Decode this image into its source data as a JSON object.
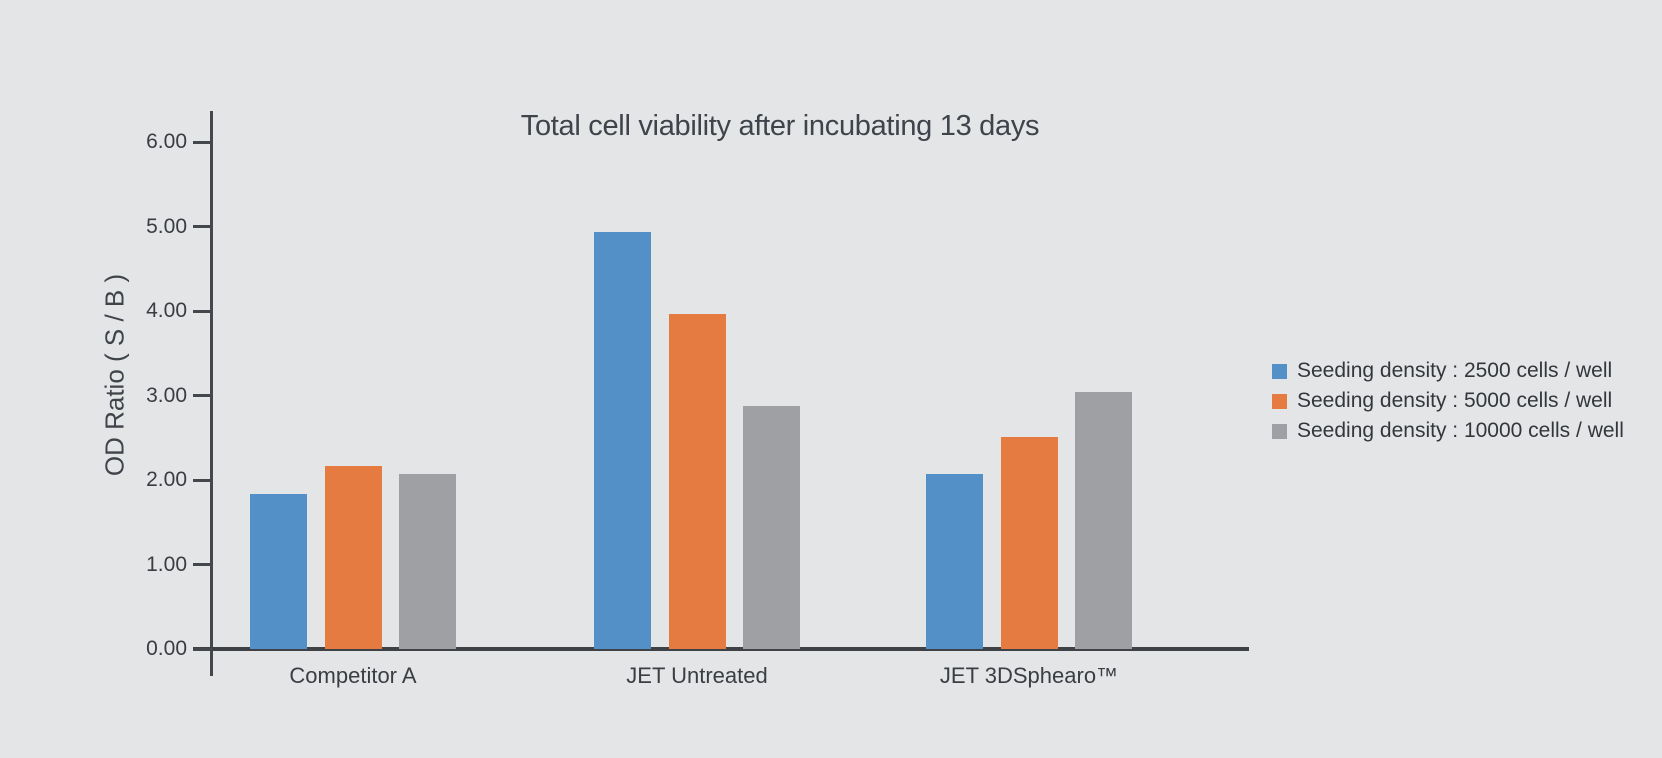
{
  "chart_data": {
    "type": "bar",
    "title": "Total cell viability after incubating 13 days",
    "xlabel": "",
    "ylabel": "OD Ratio ( S / B )",
    "categories": [
      "Competitor A",
      "JET Untreated",
      "JET 3DSphearo™"
    ],
    "series": [
      {
        "name": "Seeding density : 2500 cells / well",
        "color": "#5390C7",
        "values": [
          1.83,
          4.93,
          2.07
        ]
      },
      {
        "name": "Seeding density : 5000 cells / well",
        "color": "#E57B40",
        "values": [
          2.17,
          3.97,
          2.51
        ]
      },
      {
        "name": "Seeding density : 10000 cells / well",
        "color": "#9EA0A3",
        "values": [
          2.07,
          2.88,
          3.04
        ]
      }
    ],
    "yticks": [
      "0.00",
      "1.00",
      "2.00",
      "3.00",
      "4.00",
      "5.00",
      "6.00"
    ],
    "ylim": [
      0,
      6.37
    ],
    "grid": false,
    "legend_position": "right"
  },
  "colors": {
    "background": "#E4E5E7",
    "axis": "#44474B",
    "text": "#3C4046"
  }
}
